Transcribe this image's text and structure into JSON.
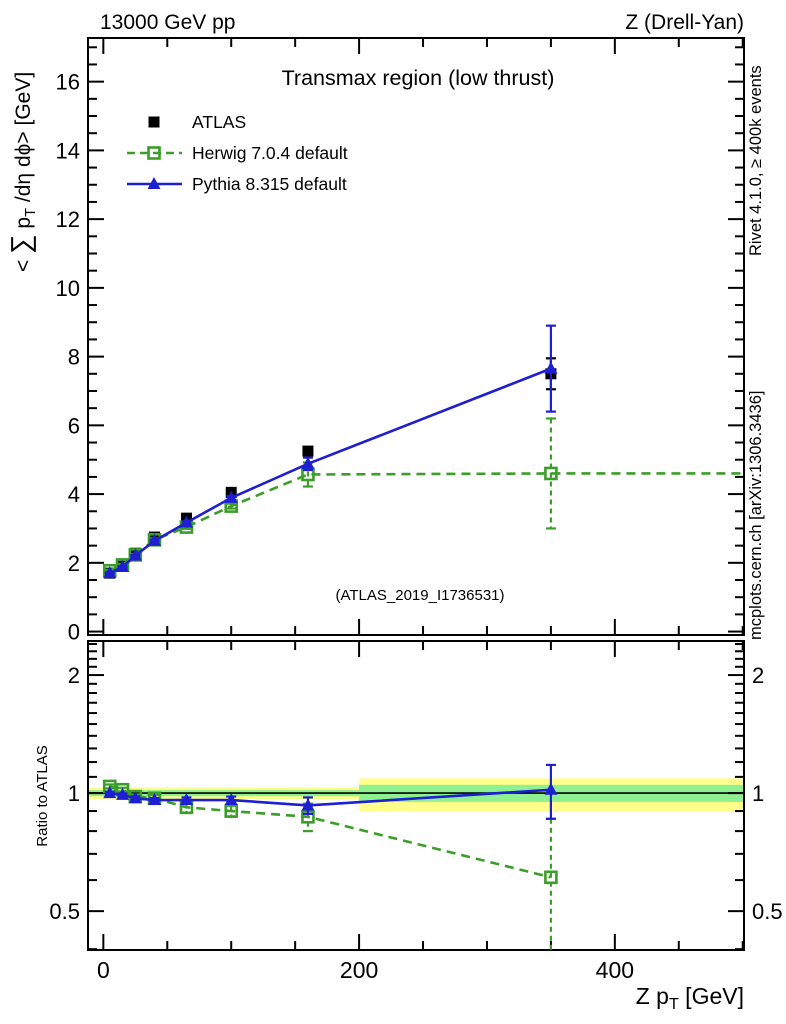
{
  "header": {
    "left": "13000 GeV pp",
    "right": "Z (Drell-Yan)"
  },
  "side_notes": {
    "top": "Rivet 4.1.0, ≥ 400k events",
    "bottom": "mcplots.cern.ch [arXiv:1306.3436]"
  },
  "watermark": "(ATLAS_2019_I1736531)",
  "chart_data": {
    "type": "line",
    "title": "Transmax region (low thrust)",
    "xlabel": "Z p_T [GeV]",
    "xlabel_parts": [
      {
        "t": "Z p"
      },
      {
        "t": "T",
        "sub": true
      },
      {
        "t": " [GeV]"
      }
    ],
    "ylabel": "< ∑ p_T /dη dϕ> [GeV]",
    "ylabel_parts": [
      {
        "t": "< "
      },
      {
        "t": "∑",
        "big": true
      },
      {
        "t": " p"
      },
      {
        "t": "T",
        "sub": true
      },
      {
        "t": " /dη dϕ> [GeV]"
      }
    ],
    "ratio_ylabel": "Ratio to ATLAS",
    "x_axis": {
      "lim": [
        -12,
        501
      ],
      "max": 500,
      "major_ticks": [
        0,
        200,
        400
      ],
      "minor_step": 50
    },
    "y_axis_main": {
      "lim": [
        -0.1,
        17.27
      ],
      "major_step": 2,
      "minor_step": 0.5,
      "labels": [
        0,
        2,
        4,
        6,
        8,
        10,
        12,
        14,
        16
      ]
    },
    "y_axis_ratio": {
      "scale": "log2",
      "lim": [
        0.398,
        2.443
      ],
      "major_ticks": [
        2,
        1,
        0.5
      ],
      "minor_ticks": [
        0.4,
        0.6,
        0.7,
        0.8,
        0.9,
        1.1,
        1.2,
        1.3,
        1.4,
        1.5,
        1.6,
        1.7,
        1.8,
        1.9,
        2.1,
        2.2,
        2.3,
        2.4
      ]
    },
    "x": [
      5,
      15,
      25,
      40,
      65,
      100,
      160,
      350
    ],
    "series": [
      {
        "key": "atlas",
        "name": "ATLAS",
        "color": "#000000",
        "marker": "square",
        "fill": "filled",
        "line": "none",
        "in_ratio": false,
        "y": [
          1.7,
          1.9,
          2.28,
          2.75,
          3.3,
          4.05,
          5.25,
          7.5
        ],
        "yerr": [
          0.04,
          0.04,
          0.04,
          0.05,
          0.06,
          0.08,
          0.12,
          0.45
        ]
      },
      {
        "key": "herwig",
        "name": "Herwig 7.0.4 default",
        "color": "#3a9e28",
        "marker": "square",
        "fill": "open",
        "line": "dashed",
        "extend_to_xmax": true,
        "y": [
          1.77,
          1.94,
          2.23,
          2.67,
          3.04,
          3.65,
          4.57,
          4.6
        ],
        "yerr": [
          0.03,
          0.03,
          0.03,
          0.04,
          0.05,
          0.07,
          0.35,
          1.6
        ],
        "ratio": [
          1.04,
          1.02,
          0.98,
          0.97,
          0.92,
          0.9,
          0.87,
          0.61
        ],
        "ratio_err": [
          0.012,
          0.012,
          0.012,
          0.02,
          0.03,
          0.03,
          0.07,
          0.25
        ]
      },
      {
        "key": "pythia",
        "name": "Pythia 8.315 default",
        "color": "#1e1ed2",
        "marker": "triangle",
        "fill": "filled",
        "line": "solid",
        "y": [
          1.7,
          1.88,
          2.21,
          2.64,
          3.17,
          3.89,
          4.88,
          7.65
        ],
        "yerr": [
          0.02,
          0.02,
          0.02,
          0.03,
          0.04,
          0.05,
          0.18,
          1.25
        ],
        "ratio": [
          1.0,
          0.99,
          0.97,
          0.96,
          0.96,
          0.96,
          0.93,
          1.02
        ],
        "ratio_err": [
          0.008,
          0.008,
          0.01,
          0.012,
          0.015,
          0.02,
          0.045,
          0.16
        ]
      }
    ],
    "ratio_bands": [
      {
        "x0": -12,
        "x1": 200,
        "outer": [
          0.965,
          1.035
        ],
        "inner": [
          0.982,
          1.018
        ]
      },
      {
        "x0": 200,
        "x1": 501,
        "outer": [
          0.9,
          1.09
        ],
        "inner": [
          0.95,
          1.05
        ]
      }
    ],
    "band_colors": {
      "outer": "#ffff8c",
      "inner": "#8ef08e"
    },
    "ratio_reference": 1,
    "legend_position": "top-left",
    "grid": false
  }
}
